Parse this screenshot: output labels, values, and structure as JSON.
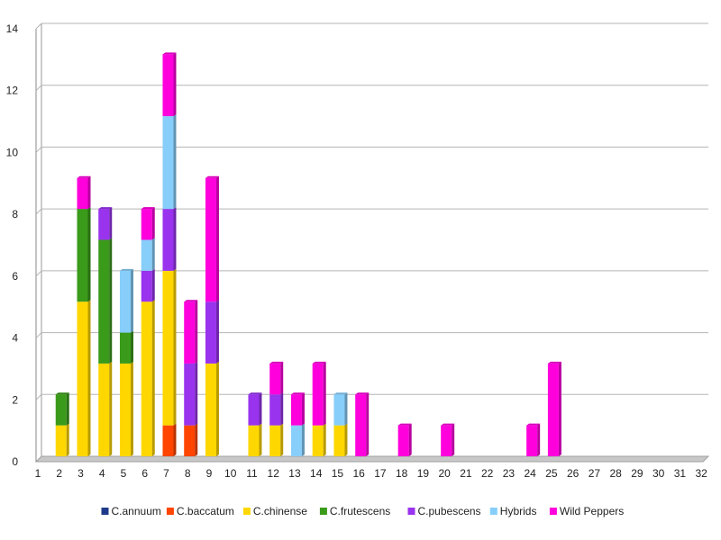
{
  "chart_data": {
    "type": "bar",
    "stacked": true,
    "title": "",
    "xlabel": "",
    "ylabel": "",
    "ylim": [
      0,
      14
    ],
    "yticks": [
      0,
      2,
      4,
      6,
      8,
      10,
      12,
      14
    ],
    "grid": true,
    "legend_position": "bottom",
    "categories": [
      "1",
      "2",
      "3",
      "4",
      "5",
      "6",
      "7",
      "8",
      "9",
      "10",
      "11",
      "12",
      "13",
      "14",
      "15",
      "16",
      "17",
      "18",
      "19",
      "20",
      "21",
      "22",
      "23",
      "24",
      "25",
      "26",
      "27",
      "28",
      "29",
      "30",
      "31",
      "32"
    ],
    "series": [
      {
        "name": "C.annuum",
        "color": "#1f3a8a",
        "values": [
          0,
          0,
          0,
          0,
          0,
          0,
          0,
          0,
          0,
          0,
          0,
          0,
          0,
          0,
          0,
          0,
          0,
          0,
          0,
          0,
          0,
          0,
          0,
          0,
          0,
          0,
          0,
          0,
          0,
          0,
          0,
          0
        ]
      },
      {
        "name": "C.baccatum",
        "color": "#ff4500",
        "values": [
          0,
          0,
          0,
          0,
          0,
          0,
          1,
          1,
          0,
          0,
          0,
          0,
          0,
          0,
          0,
          0,
          0,
          0,
          0,
          0,
          0,
          0,
          0,
          0,
          0,
          0,
          0,
          0,
          0,
          0,
          0,
          0
        ]
      },
      {
        "name": "C.chinense",
        "color": "#ffd700",
        "values": [
          0,
          1,
          5,
          3,
          3,
          5,
          5,
          0,
          3,
          0,
          1,
          1,
          0,
          1,
          1,
          0,
          0,
          0,
          0,
          0,
          0,
          0,
          0,
          0,
          0,
          0,
          0,
          0,
          0,
          0,
          0,
          0
        ]
      },
      {
        "name": "C.frutescens",
        "color": "#3a9a1a",
        "values": [
          0,
          1,
          3,
          4,
          1,
          0,
          0,
          0,
          0,
          0,
          0,
          0,
          0,
          0,
          0,
          0,
          0,
          0,
          0,
          0,
          0,
          0,
          0,
          0,
          0,
          0,
          0,
          0,
          0,
          0,
          0,
          0
        ]
      },
      {
        "name": "C.pubescens",
        "color": "#9933ee",
        "values": [
          0,
          0,
          0,
          1,
          0,
          1,
          2,
          2,
          2,
          0,
          1,
          1,
          0,
          0,
          0,
          0,
          0,
          0,
          0,
          0,
          0,
          0,
          0,
          0,
          0,
          0,
          0,
          0,
          0,
          0,
          0,
          0
        ]
      },
      {
        "name": "Hybrids",
        "color": "#87cefa",
        "values": [
          0,
          0,
          0,
          0,
          2,
          1,
          3,
          0,
          0,
          0,
          0,
          0,
          1,
          0,
          1,
          0,
          0,
          0,
          0,
          0,
          0,
          0,
          0,
          0,
          0,
          0,
          0,
          0,
          0,
          0,
          0,
          0
        ]
      },
      {
        "name": "Wild Peppers",
        "color": "#ff00dd",
        "values": [
          0,
          0,
          1,
          0,
          0,
          1,
          2,
          2,
          4,
          0,
          0,
          1,
          1,
          2,
          0,
          2,
          0,
          1,
          0,
          1,
          0,
          0,
          0,
          1,
          3,
          0,
          0,
          0,
          0,
          0,
          0,
          0
        ]
      }
    ]
  }
}
